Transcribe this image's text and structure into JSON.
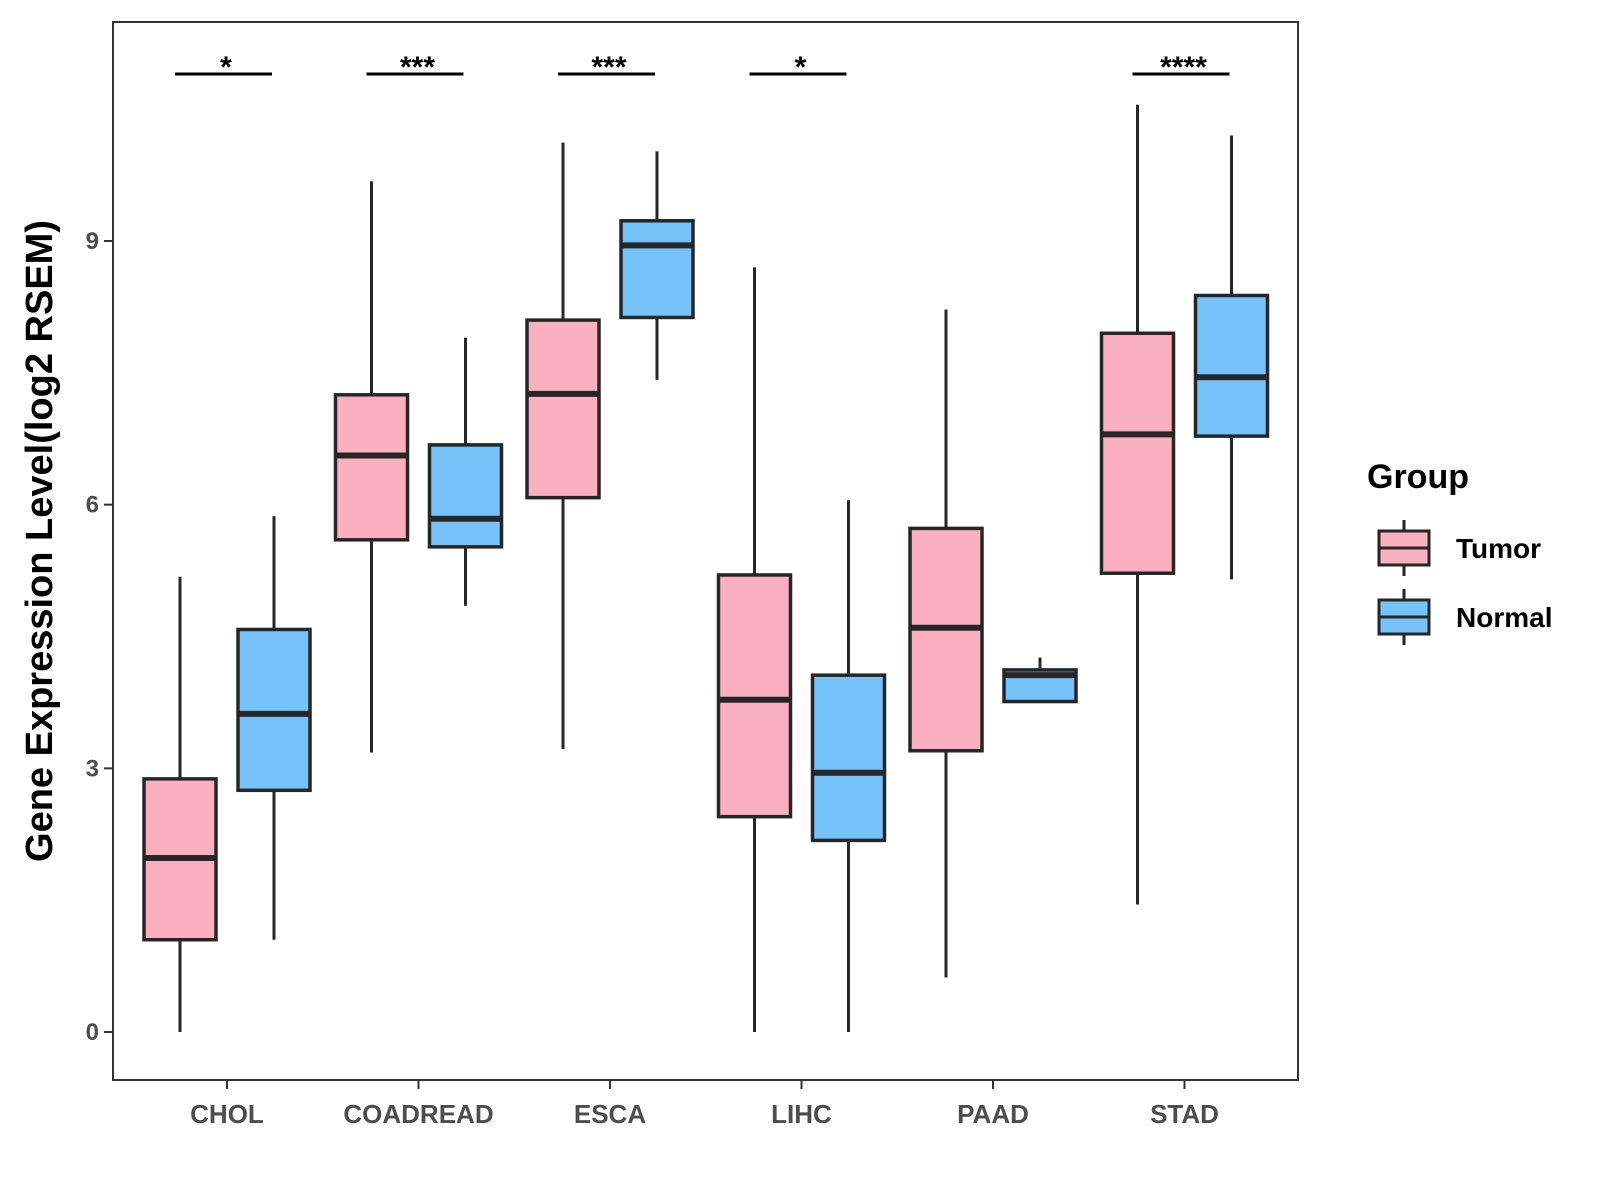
{
  "chart_data": {
    "type": "boxplot",
    "ylabel": "Gene Expression Level(log2 RSEM)",
    "xlabel": "",
    "ylim": [
      -0.5,
      11.5
    ],
    "yticks": [
      0,
      3,
      6,
      9
    ],
    "yticks_labels": [
      "0",
      "3",
      "6",
      "9"
    ],
    "categories": [
      "CHOL",
      "COADREAD",
      "ESCA",
      "LIHC",
      "PAAD",
      "STAD"
    ],
    "legend": {
      "title": "Group",
      "entries": [
        "Tumor",
        "Normal"
      ],
      "position": "right"
    },
    "series": [
      {
        "name": "Tumor",
        "color": "#FBB0C1",
        "boxes": [
          {
            "min": 0.0,
            "q1": 1.05,
            "median": 1.98,
            "q3": 2.88,
            "max": 5.18
          },
          {
            "min": 3.18,
            "q1": 5.6,
            "median": 6.56,
            "q3": 7.25,
            "max": 9.68
          },
          {
            "min": 3.22,
            "q1": 6.08,
            "median": 7.26,
            "q3": 8.1,
            "max": 10.12
          },
          {
            "min": 0.0,
            "q1": 2.45,
            "median": 3.78,
            "q3": 5.2,
            "max": 8.7
          },
          {
            "min": 0.62,
            "q1": 3.2,
            "median": 4.6,
            "q3": 5.73,
            "max": 8.22
          },
          {
            "min": 1.45,
            "q1": 5.22,
            "median": 6.8,
            "q3": 7.95,
            "max": 10.55
          }
        ]
      },
      {
        "name": "Normal",
        "color": "#76C2FA",
        "boxes": [
          {
            "min": 1.05,
            "q1": 2.75,
            "median": 3.62,
            "q3": 4.58,
            "max": 5.87
          },
          {
            "min": 4.85,
            "q1": 5.52,
            "median": 5.84,
            "q3": 6.68,
            "max": 7.9
          },
          {
            "min": 7.42,
            "q1": 8.13,
            "median": 8.95,
            "q3": 9.23,
            "max": 10.02
          },
          {
            "min": 0.0,
            "q1": 2.18,
            "median": 2.95,
            "q3": 4.06,
            "max": 6.05
          },
          {
            "min": 3.76,
            "q1": 3.76,
            "median": 4.06,
            "q3": 4.12,
            "max": 4.26
          },
          {
            "min": 5.15,
            "q1": 6.78,
            "median": 7.45,
            "q3": 8.38,
            "max": 10.2
          }
        ]
      }
    ],
    "significance": [
      "*",
      "***",
      "***",
      "*",
      "",
      "****"
    ]
  }
}
